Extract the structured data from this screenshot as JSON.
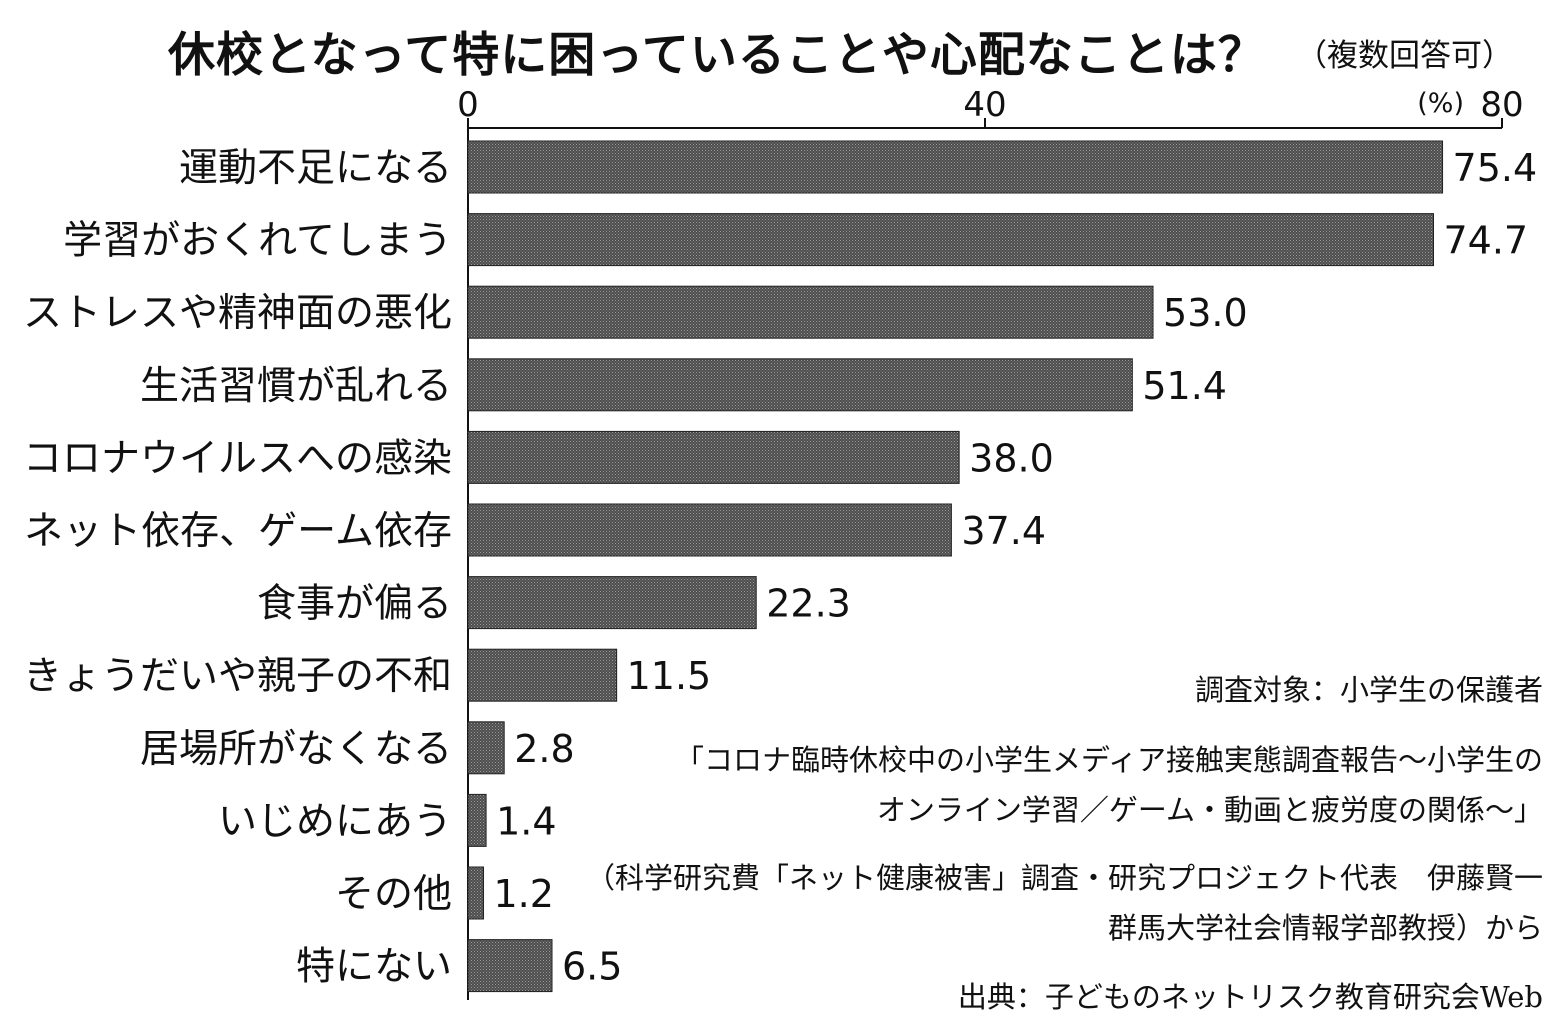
{
  "title": "休校となって特に困っていることや心配なことは？",
  "title_note": "（複数回答可）",
  "chart_data": {
    "type": "bar",
    "orientation": "horizontal",
    "categories": [
      "運動不足になる",
      "学習がおくれてしまう",
      "ストレスや精神面の悪化",
      "生活習慣が乱れる",
      "コロナウイルスへの感染",
      "ネット依存、ゲーム依存",
      "食事が偏る",
      "きょうだいや親子の不和",
      "居場所がなくなる",
      "いじめにあう",
      "その他",
      "特にない"
    ],
    "values": [
      75.4,
      74.7,
      53.0,
      51.4,
      38.0,
      37.4,
      22.3,
      11.5,
      2.8,
      1.4,
      1.2,
      6.5
    ],
    "value_labels": [
      "75.4",
      "74.7",
      "53.0",
      "51.4",
      "38.0",
      "37.4",
      "22.3",
      "11.5",
      "2.8",
      "1.4",
      "1.2",
      "6.5"
    ],
    "xlim": [
      0,
      80
    ],
    "ticks": [
      0,
      40,
      80
    ],
    "tick_labels": [
      "0",
      "40",
      "80"
    ],
    "unit_label": "(%)",
    "axis_position": "top",
    "bar_color": "#4a4a4a",
    "grid": false,
    "legend": "none"
  },
  "notes": {
    "survey_target": "調査対象：小学生の保護者",
    "report_line1": "「コロナ臨時休校中の小学生メディア接触実態調査報告～小学生の",
    "report_line2": "オンライン学習／ゲーム・動画と疲労度の関係～」",
    "credit_line1": "（科学研究費「ネット健康被害」調査・研究プロジェクト代表　伊藤賢一",
    "credit_line2": "群馬大学社会情報学部教授）から",
    "source": "出典：子どものネットリスク教育研究会Web"
  }
}
